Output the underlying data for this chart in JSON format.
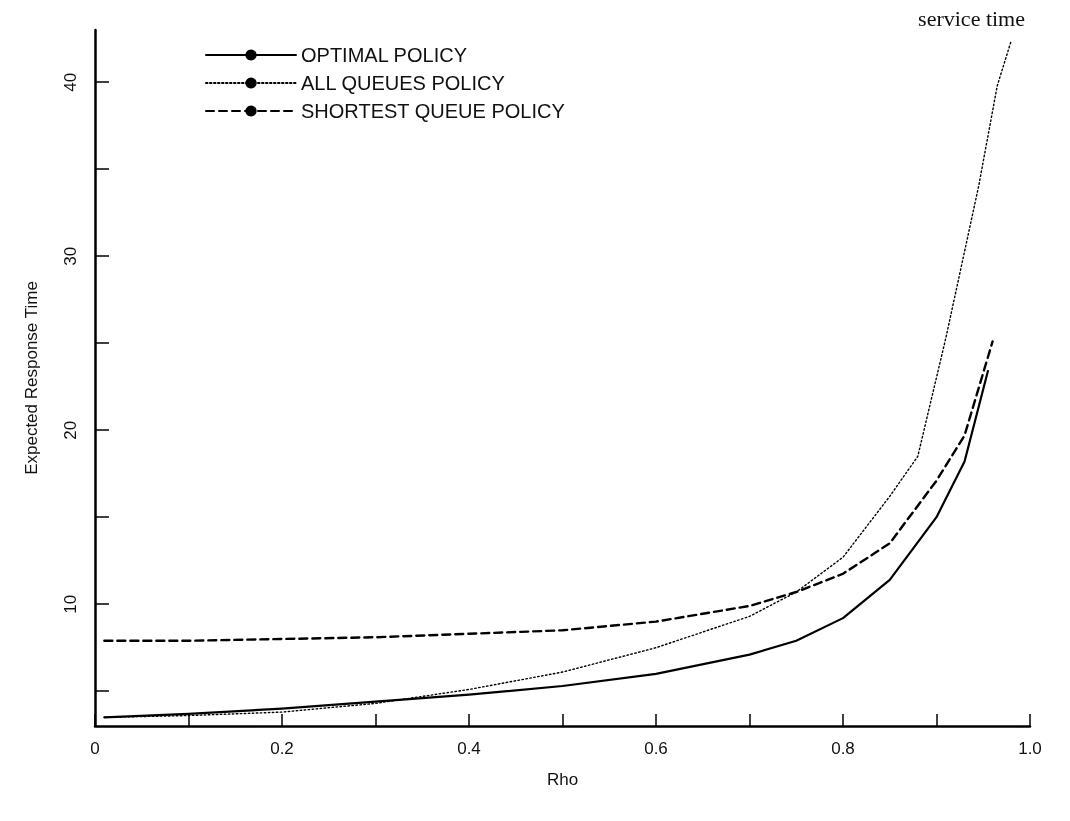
{
  "chart_data": {
    "type": "line",
    "title": "service time",
    "xlabel": "Rho",
    "ylabel": "Expected Response Time",
    "xlim": [
      0,
      1
    ],
    "ylim": [
      3,
      43
    ],
    "xticks": [
      0,
      {
        "value": 0.1,
        "label": null
      },
      0.2,
      {
        "value": 0.3,
        "label": null
      },
      0.4,
      {
        "value": 0.5,
        "label": null
      },
      0.6,
      {
        "value": 0.7,
        "label": null
      },
      0.8,
      {
        "value": 0.9,
        "label": null
      },
      {
        "value": 1,
        "label": "1.0"
      }
    ],
    "yticks": [
      {
        "value": 5,
        "label": null
      },
      10,
      {
        "value": 15,
        "label": null
      },
      20,
      {
        "value": 25,
        "label": null
      },
      30,
      {
        "value": 35,
        "label": null
      },
      40
    ],
    "grid": false,
    "legend": "top left",
    "marker": "none",
    "series": [
      {
        "name": "OPTIMAL POLICY",
        "color": "#000000",
        "line_style": "solid",
        "x": [
          0.01,
          0.1,
          0.2,
          0.3,
          0.4,
          0.5,
          0.6,
          0.7,
          0.75,
          0.8,
          0.85,
          0.9,
          0.93,
          0.955
        ],
        "values": [
          3.5,
          3.7,
          4.0,
          4.4,
          4.8,
          5.3,
          6.0,
          7.1,
          7.9,
          9.2,
          11.4,
          15,
          18.2,
          23.4
        ]
      },
      {
        "name": "ALL QUEUES POLICY",
        "color": "#000000",
        "line_style": "dotted",
        "x": [
          0.01,
          0.1,
          0.2,
          0.3,
          0.4,
          0.5,
          0.6,
          0.7,
          0.75,
          0.8,
          0.85,
          0.88,
          0.91,
          0.945,
          0.965,
          0.98
        ],
        "values": [
          3.5,
          3.6,
          3.8,
          4.3,
          5.1,
          6.1,
          7.5,
          9.3,
          10.7,
          12.7,
          16.2,
          18.5,
          25.3,
          34,
          39.8,
          42.4
        ]
      },
      {
        "name": "SHORTEST QUEUE POLICY",
        "color": "#000000",
        "line_style": "dashed",
        "x": [
          0.01,
          0.1,
          0.2,
          0.3,
          0.4,
          0.5,
          0.6,
          0.7,
          0.75,
          0.8,
          0.85,
          0.9,
          0.93,
          0.96
        ],
        "values": [
          7.9,
          7.9,
          8.0,
          8.1,
          8.3,
          8.5,
          9.0,
          9.9,
          10.7,
          11.75,
          13.5,
          17.1,
          19.7,
          25.1
        ]
      }
    ]
  }
}
